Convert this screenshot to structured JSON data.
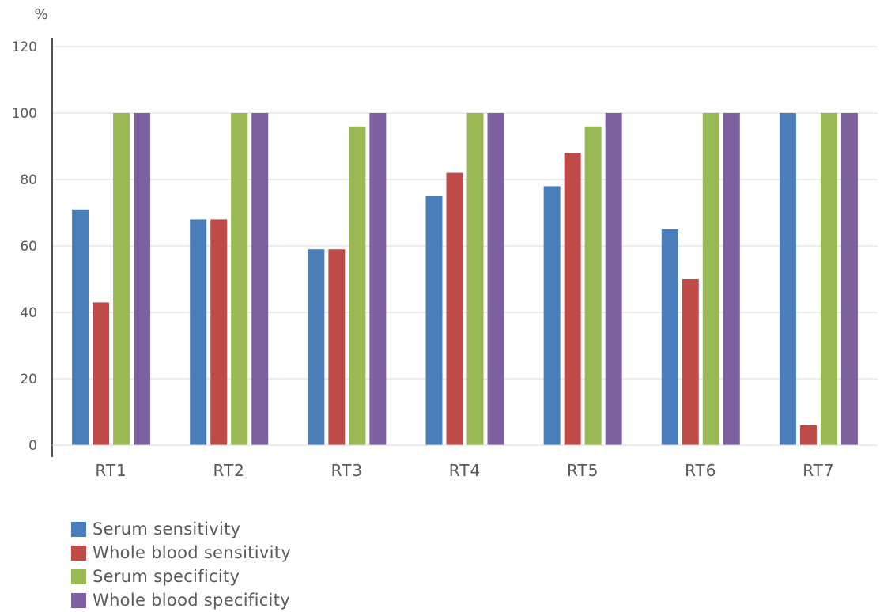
{
  "chart_data": {
    "type": "bar",
    "title": "",
    "xlabel": "",
    "ylabel": "%",
    "ylim": [
      0,
      120
    ],
    "yticks": [
      "0",
      "20",
      "40",
      "60",
      "80",
      "100",
      "120"
    ],
    "grid": true,
    "legend_position": "bottom-left",
    "categories": [
      "RT1",
      "RT2",
      "RT3",
      "RT4",
      "RT5",
      "RT6",
      "RT7"
    ],
    "series": [
      {
        "name": "Serum sensitivity",
        "color": "#4a7ebb",
        "values": [
          71,
          68,
          59,
          75,
          78,
          65,
          100
        ]
      },
      {
        "name": "Whole blood sensitivity",
        "color": "#be4b48",
        "values": [
          43,
          68,
          59,
          82,
          88,
          50,
          6
        ]
      },
      {
        "name": "Serum specificity",
        "color": "#98b954",
        "values": [
          100,
          100,
          96,
          100,
          96,
          100,
          100
        ]
      },
      {
        "name": "Whole blood specificity",
        "color": "#7d60a0",
        "values": [
          100,
          100,
          100,
          100,
          100,
          100,
          100
        ]
      }
    ]
  }
}
